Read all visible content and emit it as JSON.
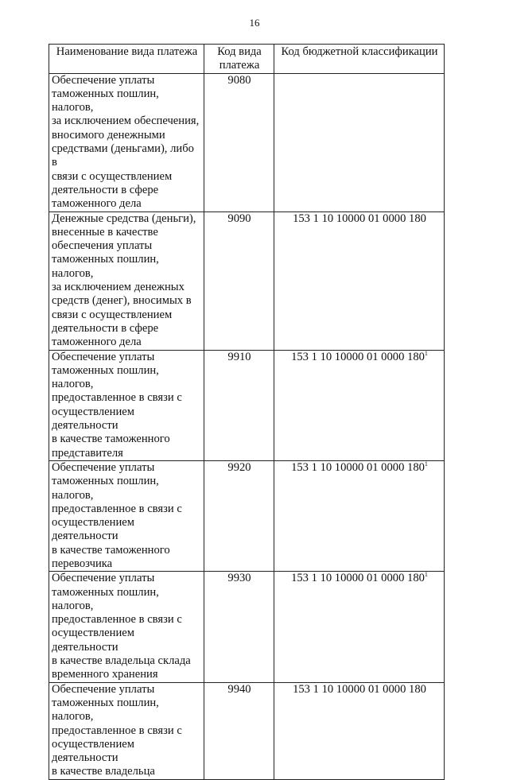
{
  "page_number": "16",
  "table": {
    "headers": [
      "Наименование вида платежа",
      "Код вида\nплатежа",
      "Код бюджетной классификации"
    ],
    "rows": [
      {
        "name": "Обеспечение уплаты\nтаможенных пошлин, налогов,\nза исключением обеспечения,\nвносимого денежными\nсредствами (деньгами), либо в\nсвязи с осуществлением\nдеятельности в сфере\nтаможенного дела",
        "code": "9080",
        "kbk": "",
        "footnote": ""
      },
      {
        "name": "Денежные средства (деньги),\nвнесенные в качестве\nобеспечения уплаты\nтаможенных пошлин, налогов,\nза исключением денежных\nсредств (денег), вносимых в\nсвязи с осуществлением\nдеятельности в сфере\nтаможенного дела",
        "code": "9090",
        "kbk": "153 1 10 10000 01 0000 180",
        "footnote": ""
      },
      {
        "name": "Обеспечение уплаты\nтаможенных пошлин, налогов,\nпредоставленное в связи с\nосуществлением деятельности\nв качестве таможенного\nпредставителя",
        "code": "9910",
        "kbk": "153 1 10 10000 01 0000 180",
        "footnote": "1"
      },
      {
        "name": "Обеспечение уплаты\nтаможенных пошлин, налогов,\nпредоставленное в связи с\nосуществлением деятельности\nв качестве таможенного\nперевозчика",
        "code": "9920",
        "kbk": "153 1 10 10000 01 0000 180",
        "footnote": "1"
      },
      {
        "name": "Обеспечение уплаты\nтаможенных пошлин, налогов,\nпредоставленное в связи с\nосуществлением деятельности\nв качестве владельца склада\nвременного хранения",
        "code": "9930",
        "kbk": "153 1 10 10000 01 0000 180",
        "footnote": "1"
      },
      {
        "name": "Обеспечение уплаты\nтаможенных пошлин, налогов,\nпредоставленное в связи с\nосуществлением деятельности\nв качестве владельца",
        "code": "9940",
        "kbk": "153 1 10 10000 01 0000 180",
        "footnote": ""
      }
    ]
  }
}
